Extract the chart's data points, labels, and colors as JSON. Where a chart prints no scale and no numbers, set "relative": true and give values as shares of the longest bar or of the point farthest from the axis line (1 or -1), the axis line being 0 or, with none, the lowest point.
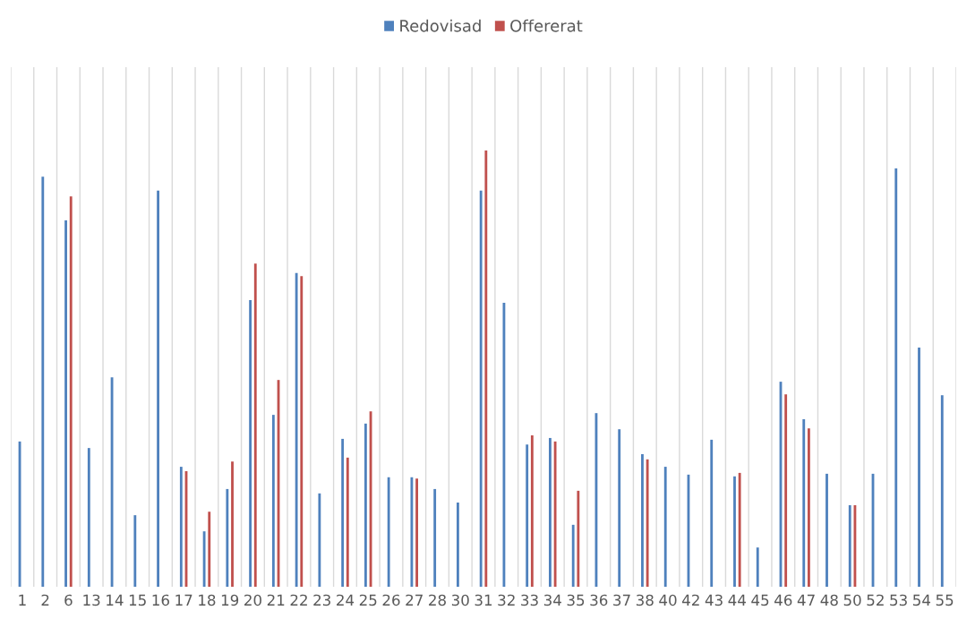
{
  "chart_data": {
    "type": "bar",
    "relative": true,
    "grid": "x",
    "legend": "top",
    "categories": [
      "1",
      "2",
      "6",
      "13",
      "14",
      "15",
      "16",
      "17",
      "18",
      "19",
      "20",
      "21",
      "22",
      "23",
      "24",
      "25",
      "26",
      "27",
      "28",
      "30",
      "31",
      "32",
      "33",
      "34",
      "35",
      "36",
      "37",
      "38",
      "40",
      "42",
      "43",
      "44",
      "45",
      "46",
      "47",
      "48",
      "50",
      "52",
      "53",
      "54",
      "55"
    ],
    "series": [
      {
        "name": "Redovisad",
        "color": "#4f81bd",
        "values": [
          0.333,
          0.94,
          0.84,
          0.318,
          0.48,
          0.164,
          0.908,
          0.275,
          0.127,
          0.224,
          0.657,
          0.394,
          0.719,
          0.214,
          0.339,
          0.374,
          0.251,
          0.251,
          0.224,
          0.193,
          0.908,
          0.651,
          0.326,
          0.341,
          0.142,
          0.398,
          0.361,
          0.304,
          0.275,
          0.257,
          0.337,
          0.253,
          0.09,
          0.47,
          0.384,
          0.259,
          0.187,
          0.259,
          0.959,
          0.548,
          0.439
        ]
      },
      {
        "name": "Offererat",
        "color": "#c0504d",
        "values": [
          null,
          null,
          0.895,
          null,
          null,
          null,
          null,
          0.265,
          0.172,
          0.287,
          0.741,
          0.474,
          0.712,
          null,
          0.296,
          0.402,
          null,
          0.248,
          null,
          null,
          1,
          null,
          0.347,
          0.333,
          0.22,
          null,
          null,
          0.292,
          null,
          null,
          null,
          0.261,
          null,
          0.441,
          0.363,
          null,
          0.187,
          null,
          null,
          null,
          null
        ]
      }
    ]
  }
}
